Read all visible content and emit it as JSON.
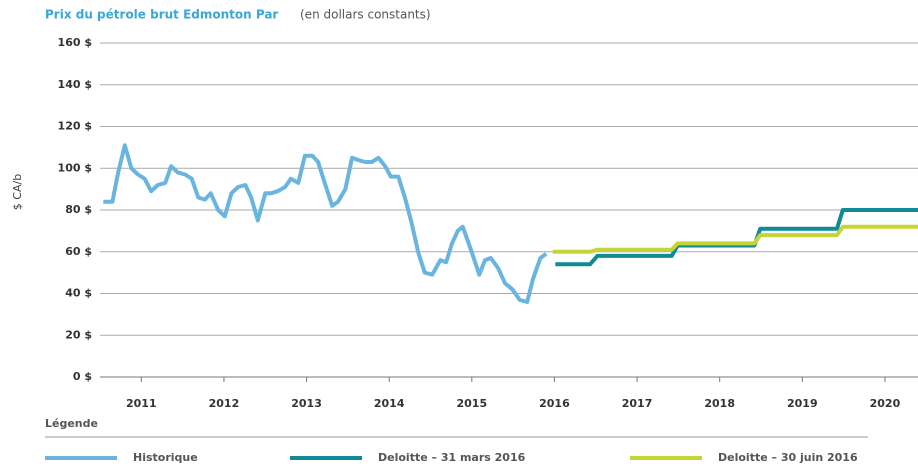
{
  "chart_data": {
    "type": "line",
    "title": "Prix du pétrole brut Edmonton Par",
    "subtitle": "(en dollars constants)",
    "y_label": "$ CA/b",
    "legend_title": "Légende",
    "ylim": [
      0,
      160
    ],
    "yticks": [
      {
        "value": 0,
        "label": "0 $"
      },
      {
        "value": 20,
        "label": "20 $"
      },
      {
        "value": 40,
        "label": "40 $"
      },
      {
        "value": 60,
        "label": "60 $"
      },
      {
        "value": 80,
        "label": "80 $"
      },
      {
        "value": 100,
        "label": "100 $"
      },
      {
        "value": 120,
        "label": "120 $"
      },
      {
        "value": 140,
        "label": "140 $"
      },
      {
        "value": 160,
        "label": "160 $"
      }
    ],
    "xlim": [
      2011,
      2020.9
    ],
    "xticks": [
      {
        "value": 2011.5,
        "label": "2011"
      },
      {
        "value": 2012.5,
        "label": "2012"
      },
      {
        "value": 2013.5,
        "label": "2013"
      },
      {
        "value": 2014.5,
        "label": "2014"
      },
      {
        "value": 2015.5,
        "label": "2015"
      },
      {
        "value": 2016.5,
        "label": "2016"
      },
      {
        "value": 2017.5,
        "label": "2017"
      },
      {
        "value": 2018.5,
        "label": "2018"
      },
      {
        "value": 2019.5,
        "label": "2019"
      },
      {
        "value": 2020.5,
        "label": "2020"
      }
    ],
    "grid": true,
    "series": [
      {
        "name": "Historique",
        "color": "#6ab4e0",
        "x": [
          2011.04,
          2011.15,
          2011.22,
          2011.3,
          2011.38,
          2011.46,
          2011.54,
          2011.62,
          2011.7,
          2011.79,
          2011.86,
          2011.94,
          2012.03,
          2012.11,
          2012.19,
          2012.27,
          2012.34,
          2012.43,
          2012.51,
          2012.59,
          2012.67,
          2012.76,
          2012.83,
          2012.91,
          2013.0,
          2013.07,
          2013.15,
          2013.24,
          2013.31,
          2013.4,
          2013.48,
          2013.57,
          2013.64,
          2013.72,
          2013.81,
          2013.88,
          2013.97,
          2014.05,
          2014.12,
          2014.21,
          2014.29,
          2014.37,
          2014.45,
          2014.52,
          2014.61,
          2014.69,
          2014.77,
          2014.85,
          2014.93,
          2015.02,
          2015.12,
          2015.19,
          2015.26,
          2015.33,
          2015.39,
          2015.48,
          2015.59,
          2015.66,
          2015.73,
          2015.82,
          2015.9,
          2015.99,
          2016.08,
          2016.17,
          2016.24,
          2016.33,
          2016.4
        ],
        "values": [
          84,
          84,
          98,
          111,
          100,
          97,
          95,
          89,
          92,
          93,
          101,
          98,
          97,
          95,
          86,
          85,
          88,
          80,
          77,
          88,
          91,
          92,
          86,
          75,
          88,
          88,
          89,
          91,
          95,
          93,
          106,
          106,
          103,
          93,
          82,
          84,
          90,
          105,
          104,
          103,
          103,
          105,
          101,
          96,
          96,
          86,
          74,
          60,
          50,
          49,
          56,
          55,
          64,
          70,
          72,
          62,
          49,
          56,
          57,
          52,
          45,
          42,
          37,
          36,
          47,
          57,
          59
        ]
      },
      {
        "name": "Deloitte – 31 mars 2016",
        "color": "#0f8a96",
        "x": [
          2016.51,
          2016.93,
          2017.02,
          2017.92,
          2017.99,
          2018.92,
          2018.99,
          2019.92,
          2019.99,
          2020.9
        ],
        "values": [
          54,
          54,
          58,
          58,
          63,
          63,
          71,
          71,
          80,
          80
        ]
      },
      {
        "name": "Deloitte – 30 juin 2016",
        "color": "#c5d535",
        "x": [
          2016.48,
          2016.93,
          2017.02,
          2017.92,
          2017.99,
          2018.92,
          2018.99,
          2019.92,
          2019.99,
          2020.9
        ],
        "values": [
          60,
          60,
          61,
          61,
          64,
          64,
          68,
          68,
          72,
          72
        ]
      }
    ]
  }
}
